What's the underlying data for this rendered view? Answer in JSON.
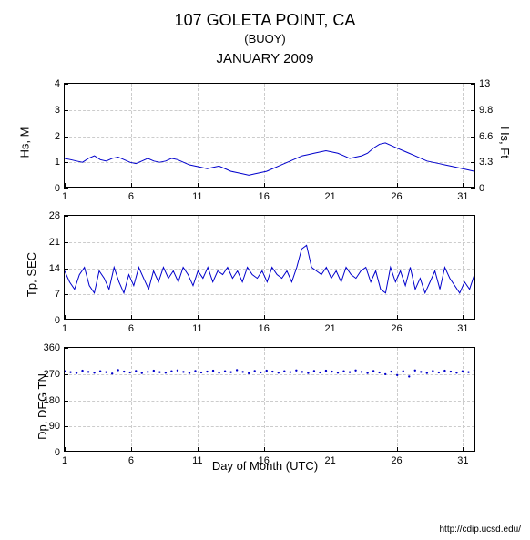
{
  "header": {
    "title": "107 GOLETA POINT, CA",
    "subtitle": "(BUOY)",
    "month": "JANUARY 2009"
  },
  "xaxis": {
    "label": "Day of Month (UTC)",
    "min": 1,
    "max": 32,
    "ticks": [
      1,
      6,
      11,
      16,
      21,
      26,
      31
    ]
  },
  "panels": [
    {
      "id": "hs",
      "ylabel_left": "Hs, M",
      "ylabel_right": "Hs, Ft",
      "ylim": [
        0,
        4
      ],
      "yticks_left": [
        0,
        1,
        2,
        3,
        4
      ],
      "yticks_right": [
        0,
        3.3,
        6.6,
        9.8,
        13
      ],
      "height": 115,
      "line_color": "#0000cc",
      "line_width": 1,
      "data": [
        1.1,
        1.05,
        1.0,
        0.95,
        1.1,
        1.2,
        1.05,
        1.0,
        1.1,
        1.15,
        1.05,
        0.95,
        0.9,
        1.0,
        1.1,
        1.0,
        0.95,
        1.0,
        1.1,
        1.05,
        0.95,
        0.85,
        0.8,
        0.75,
        0.7,
        0.75,
        0.8,
        0.7,
        0.6,
        0.55,
        0.5,
        0.45,
        0.5,
        0.55,
        0.6,
        0.7,
        0.8,
        0.9,
        1.0,
        1.1,
        1.2,
        1.25,
        1.3,
        1.35,
        1.4,
        1.35,
        1.3,
        1.2,
        1.1,
        1.15,
        1.2,
        1.3,
        1.5,
        1.65,
        1.7,
        1.6,
        1.5,
        1.4,
        1.3,
        1.2,
        1.1,
        1.0,
        0.95,
        0.9,
        0.85,
        0.8,
        0.75,
        0.7,
        0.65,
        0.6
      ]
    },
    {
      "id": "tp",
      "ylabel_left": "Tp, SEC",
      "ylim": [
        0,
        28
      ],
      "yticks_left": [
        0,
        7,
        14,
        21,
        28
      ],
      "height": 115,
      "line_color": "#0000cc",
      "line_width": 1,
      "data": [
        13,
        10,
        8,
        12,
        14,
        9,
        7,
        13,
        11,
        8,
        14,
        10,
        7,
        12,
        9,
        14,
        11,
        8,
        13,
        10,
        14,
        11,
        13,
        10,
        14,
        12,
        9,
        13,
        11,
        14,
        10,
        13,
        12,
        14,
        11,
        13,
        10,
        14,
        12,
        11,
        13,
        10,
        14,
        12,
        11,
        13,
        10,
        14,
        19,
        20,
        14,
        13,
        12,
        14,
        11,
        13,
        10,
        14,
        12,
        11,
        13,
        14,
        10,
        13,
        8,
        7,
        14,
        10,
        13,
        9,
        14,
        8,
        11,
        7,
        10,
        13,
        8,
        14,
        11,
        9,
        7,
        10,
        8,
        12
      ]
    },
    {
      "id": "dp",
      "ylabel_left": "Dp, DEG TN",
      "ylim": [
        0,
        360
      ],
      "yticks_left": [
        0,
        90,
        180,
        270,
        360
      ],
      "height": 115,
      "line_color": "#0000cc",
      "line_width": 1,
      "scatter": true,
      "data": [
        278,
        275,
        272,
        280,
        276,
        273,
        278,
        275,
        270,
        282,
        277,
        274,
        279,
        272,
        276,
        280,
        275,
        273,
        278,
        281,
        276,
        272,
        279,
        274,
        277,
        280,
        273,
        278,
        275,
        282,
        276,
        271,
        279,
        274,
        280,
        277,
        273,
        278,
        275,
        281,
        276,
        272,
        279,
        274,
        280,
        277,
        273,
        278,
        275,
        281,
        276,
        272,
        279,
        274,
        268,
        277,
        265,
        278,
        260,
        281,
        276,
        272,
        279,
        274,
        280,
        277,
        273,
        278,
        275,
        281
      ]
    }
  ],
  "attribution": "http://cdip.ucsd.edu/",
  "colors": {
    "background": "#ffffff",
    "grid": "#cccccc",
    "axis": "#000000",
    "text": "#000000"
  }
}
